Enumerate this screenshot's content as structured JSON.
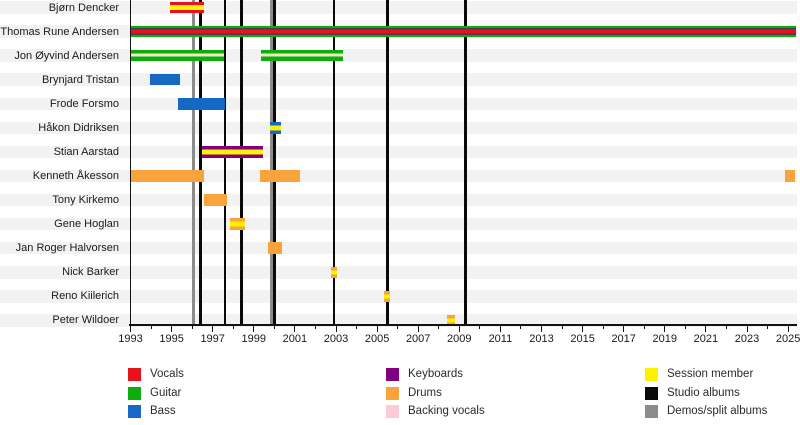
{
  "chart_data": {
    "type": "timeline",
    "description": "Band member timeline (gantt-style) with roles, session stripes, and release lines",
    "x_axis": {
      "start_year": 1993,
      "end_year": 2025,
      "minor_tick_every_years": 1,
      "label_every_years": 2,
      "tick_labels": [
        "1993",
        "1995",
        "1997",
        "1999",
        "2001",
        "2003",
        "2005",
        "2007",
        "2009",
        "2011",
        "2013",
        "2015",
        "2017",
        "2019",
        "2021",
        "2023",
        "2025"
      ]
    },
    "colors": {
      "vocals": "#E8111C",
      "guitar": "#0DAD0D",
      "bass": "#1568C4",
      "keyboards": "#800080",
      "drums": "#F8A33B",
      "backing_vocals": "#FBCBD7",
      "backing_vocals_stripe": "#EFE9C4",
      "session": "#FFF200",
      "studio_albums": "#0A0A0A",
      "demos_split": "#8C8C8C",
      "dark_stripe_top": "#3A4350",
      "dark_stripe_bottom": "#4D3B4D",
      "row_band": "#F2F2F2",
      "axis": "#111111",
      "text": "#1A1A1A"
    },
    "members": [
      {
        "name": "Bjørn Dencker",
        "stints": [
          {
            "start": 1994.9,
            "end": 1996.6,
            "roles": [
              "vocals"
            ],
            "session": true,
            "stripes": [
              [
                "vocals",
                28
              ],
              [
                "session",
                44
              ],
              [
                "vocals",
                28
              ]
            ]
          }
        ]
      },
      {
        "name": "Thomas Rune Andersen",
        "stints": [
          {
            "start": 1993.0,
            "end": 2025.4,
            "roles": [
              "vocals",
              "guitar"
            ],
            "session": false,
            "stripes": [
              [
                "guitar",
                16
              ],
              [
                "dark_stripe_top",
                17
              ],
              [
                "vocals",
                34
              ],
              [
                "dark_stripe_bottom",
                17
              ],
              [
                "guitar",
                16
              ]
            ]
          }
        ]
      },
      {
        "name": "Jon Øyvind Andersen",
        "stints": [
          {
            "start": 1993.0,
            "end": 1997.55,
            "roles": [
              "guitar",
              "backing vocals"
            ],
            "session": false,
            "stripes": [
              [
                "guitar",
                34
              ],
              [
                "backing_vocals_stripe",
                26
              ],
              [
                "guitar",
                40
              ]
            ]
          },
          {
            "start": 1999.35,
            "end": 2003.35,
            "roles": [
              "guitar",
              "backing vocals"
            ],
            "session": false,
            "stripes": [
              [
                "guitar",
                34
              ],
              [
                "backing_vocals_stripe",
                26
              ],
              [
                "guitar",
                40
              ]
            ]
          }
        ]
      },
      {
        "name": "Brynjard Tristan",
        "stints": [
          {
            "start": 1993.95,
            "end": 1995.4,
            "roles": [
              "bass"
            ],
            "session": false,
            "stripes": [
              [
                "bass",
                100
              ]
            ]
          }
        ]
      },
      {
        "name": "Frode Forsmo",
        "stints": [
          {
            "start": 1995.3,
            "end": 1997.6,
            "roles": [
              "bass"
            ],
            "session": false,
            "stripes": [
              [
                "bass",
                100
              ]
            ]
          }
        ]
      },
      {
        "name": "Håkon Didriksen",
        "stints": [
          {
            "start": 1999.8,
            "end": 2000.3,
            "roles": [
              "bass"
            ],
            "session": true,
            "stripes": [
              [
                "bass",
                28
              ],
              [
                "session",
                44
              ],
              [
                "bass",
                28
              ]
            ]
          }
        ]
      },
      {
        "name": "Stian Aarstad",
        "stints": [
          {
            "start": 1996.5,
            "end": 1999.45,
            "roles": [
              "keyboards"
            ],
            "session": true,
            "stripes": [
              [
                "keyboards",
                30
              ],
              [
                "session",
                40
              ],
              [
                "keyboards",
                30
              ]
            ]
          }
        ]
      },
      {
        "name": "Kenneth Åkesson",
        "stints": [
          {
            "start": 1993.0,
            "end": 1996.6,
            "roles": [
              "drums"
            ],
            "session": false,
            "stripes": [
              [
                "drums",
                100
              ]
            ]
          },
          {
            "start": 1999.3,
            "end": 2001.25,
            "roles": [
              "drums"
            ],
            "session": false,
            "stripes": [
              [
                "drums",
                100
              ]
            ]
          },
          {
            "start": 2024.85,
            "end": 2025.35,
            "roles": [
              "drums"
            ],
            "session": false,
            "stripes": [
              [
                "drums",
                100
              ]
            ]
          }
        ]
      },
      {
        "name": "Tony Kirkemo",
        "stints": [
          {
            "start": 1996.6,
            "end": 1997.7,
            "roles": [
              "drums"
            ],
            "session": false,
            "stripes": [
              [
                "drums",
                100
              ]
            ]
          }
        ]
      },
      {
        "name": "Gene Hoglan",
        "stints": [
          {
            "start": 1997.85,
            "end": 1998.55,
            "roles": [
              "drums"
            ],
            "session": true,
            "stripes": [
              [
                "drums",
                30
              ],
              [
                "session",
                40
              ],
              [
                "drums",
                30
              ]
            ]
          }
        ]
      },
      {
        "name": "Jan Roger Halvorsen",
        "stints": [
          {
            "start": 1999.7,
            "end": 2000.35,
            "roles": [
              "drums"
            ],
            "session": false,
            "stripes": [
              [
                "drums",
                100
              ]
            ]
          }
        ]
      },
      {
        "name": "Nick Barker",
        "stints": [
          {
            "start": 2002.75,
            "end": 2003.05,
            "roles": [
              "drums"
            ],
            "session": true,
            "stripes": [
              [
                "drums",
                30
              ],
              [
                "session",
                40
              ],
              [
                "drums",
                30
              ]
            ]
          }
        ]
      },
      {
        "name": "Reno Kiilerich",
        "stints": [
          {
            "start": 2005.35,
            "end": 2005.65,
            "roles": [
              "drums"
            ],
            "session": true,
            "stripes": [
              [
                "drums",
                30
              ],
              [
                "session",
                40
              ],
              [
                "drums",
                30
              ]
            ]
          }
        ]
      },
      {
        "name": "Peter Wildoer",
        "stints": [
          {
            "start": 2008.4,
            "end": 2008.8,
            "roles": [
              "drums"
            ],
            "session": true,
            "stripes": [
              [
                "drums",
                30
              ],
              [
                "session",
                40
              ],
              [
                "drums",
                30
              ]
            ]
          }
        ]
      }
    ],
    "releases": {
      "studio_albums_years": [
        1996.4,
        1997.6,
        1998.4,
        2000.0,
        2002.9,
        2005.5,
        2009.3
      ],
      "demos_split_years": [
        1996.05,
        1999.85
      ]
    },
    "legend": [
      [
        {
          "label": "Vocals",
          "color": "vocals"
        },
        {
          "label": "Guitar",
          "color": "guitar"
        },
        {
          "label": "Bass",
          "color": "bass"
        }
      ],
      [
        {
          "label": "Keyboards",
          "color": "keyboards"
        },
        {
          "label": "Drums",
          "color": "drums"
        },
        {
          "label": "Backing vocals",
          "color": "backing_vocals"
        }
      ],
      [
        {
          "label": "Session member",
          "color": "session"
        },
        {
          "label": "Studio albums",
          "color": "studio_albums"
        },
        {
          "label": "Demos/split albums",
          "color": "demos_split"
        }
      ]
    ]
  }
}
